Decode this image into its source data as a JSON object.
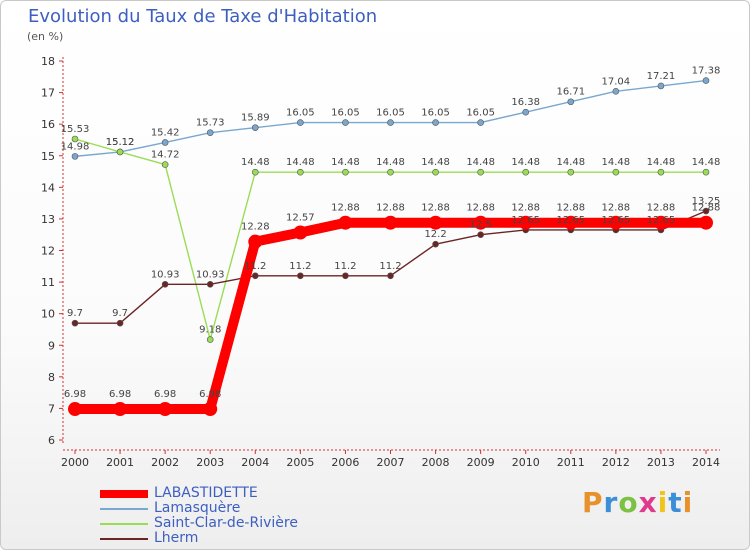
{
  "chart_data": {
    "type": "line",
    "title": "Evolution du Taux de Taxe d'Habitation",
    "subtitle": "(en %)",
    "x": [
      "2000",
      "2001",
      "2002",
      "2003",
      "2004",
      "2005",
      "2006",
      "2007",
      "2008",
      "2009",
      "2010",
      "2011",
      "2012",
      "2013",
      "2014"
    ],
    "ylim": [
      6,
      18
    ],
    "yticks": [
      6,
      7,
      8,
      9,
      10,
      11,
      12,
      13,
      14,
      15,
      16,
      17,
      18
    ],
    "grid": false,
    "legend_position": "bottom-left",
    "series": [
      {
        "name": "LABASTIDETTE",
        "color": "#ff0000",
        "values": [
          6.98,
          6.98,
          6.98,
          6.98,
          12.28,
          12.57,
          12.88,
          12.88,
          12.88,
          12.88,
          12.88,
          12.88,
          12.88,
          12.88,
          12.88
        ]
      },
      {
        "name": "Lamasquère",
        "color": "#7aa7cf",
        "values": [
          14.98,
          15.12,
          15.42,
          15.73,
          15.89,
          16.05,
          16.05,
          16.05,
          16.05,
          16.05,
          16.38,
          16.71,
          17.04,
          17.21,
          17.38
        ]
      },
      {
        "name": "Saint-Clar-de-Rivière",
        "color": "#99dd55",
        "values": [
          15.53,
          15.12,
          14.72,
          9.18,
          14.48,
          14.48,
          14.48,
          14.48,
          14.48,
          14.48,
          14.48,
          14.48,
          14.48,
          14.48,
          14.48
        ]
      },
      {
        "name": "Lherm",
        "color": "#6b2525",
        "values": [
          9.7,
          9.7,
          10.93,
          10.93,
          11.2,
          11.2,
          11.2,
          11.2,
          12.2,
          12.5,
          12.65,
          12.65,
          12.65,
          12.65,
          13.25
        ]
      }
    ],
    "value_labels": {
      "LABASTIDETTE": [
        "6.98",
        "6.98",
        "6.98",
        "6.98",
        "12.28",
        "12.57",
        "12.88",
        "12.88",
        "12.88",
        "12.88",
        "12.88",
        "12.88",
        "12.88",
        "12.88",
        "12.88"
      ],
      "Lamasquère": [
        "14.98",
        "15.12",
        "15.42",
        "15.73",
        "15.89",
        "16.05",
        "16.05",
        "16.05",
        "16.05",
        "16.05",
        "16.38",
        "16.71",
        "17.04",
        "17.21",
        "17.38"
      ],
      "Saint-Clar-de-Rivière": [
        "15.53",
        "15.12",
        "14.72",
        "9.18",
        "14.48",
        "14.48",
        "14.48",
        "14.48",
        "14.48",
        "14.48",
        "14.48",
        "14.48",
        "14.48",
        "14.48",
        "14.48"
      ],
      "Lherm": [
        "9.7",
        "9.7",
        "10.93",
        "10.93",
        "11.2",
        "11.2",
        "11.2",
        "11.2",
        "12.2",
        "12.5",
        "12.65",
        "12.65",
        "12.65",
        "12.65",
        "13.25"
      ]
    }
  },
  "logo": {
    "text": "Proxiti",
    "colors": [
      "#e8902a",
      "#3a8fd8",
      "#7cc142",
      "#e03a8e",
      "#f0c419",
      "#3a8fd8",
      "#e8902a"
    ]
  }
}
